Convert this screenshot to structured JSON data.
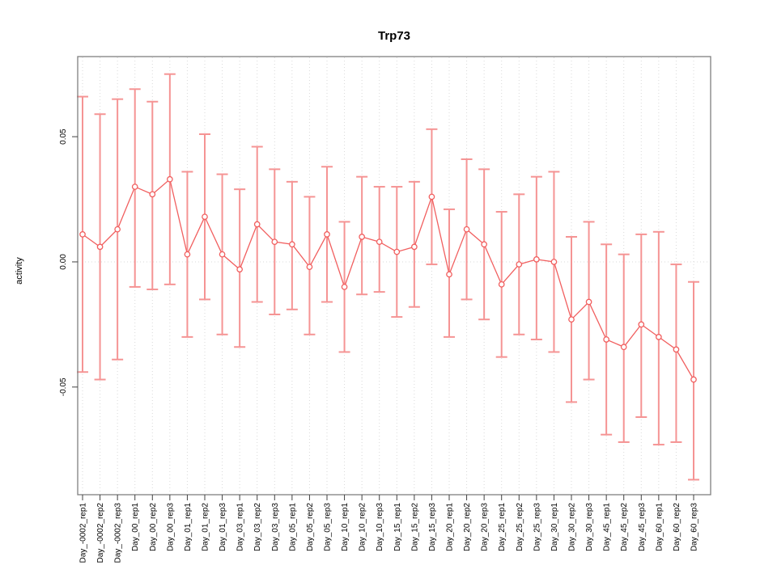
{
  "chart_data": {
    "type": "scatter",
    "title": "Trp73",
    "xlabel": "",
    "ylabel": "activity",
    "ylim": [
      -0.093,
      0.082
    ],
    "yticks": [
      0.05,
      0.0,
      -0.05
    ],
    "ytick_labels": [
      "0.05",
      "0.00",
      "-0.05"
    ],
    "grid": {
      "vertical_dotted_per_category": true,
      "horizontal_zero_line_dotted": true
    },
    "legend_position": "none",
    "marker": "open-circle",
    "connected_line": true,
    "error_bars": true,
    "categories": [
      "Day_-0002_rep1",
      "Day_-0002_rep2",
      "Day_-0002_rep3",
      "Day_00_rep1",
      "Day_00_rep2",
      "Day_00_rep3",
      "Day_01_rep1",
      "Day_01_rep2",
      "Day_01_rep3",
      "Day_03_rep1",
      "Day_03_rep2",
      "Day_03_rep3",
      "Day_05_rep1",
      "Day_05_rep2",
      "Day_05_rep3",
      "Day_10_rep1",
      "Day_10_rep2",
      "Day_10_rep3",
      "Day_15_rep1",
      "Day_15_rep2",
      "Day_15_rep3",
      "Day_20_rep1",
      "Day_20_rep2",
      "Day_20_rep3",
      "Day_25_rep1",
      "Day_25_rep2",
      "Day_25_rep3",
      "Day_30_rep1",
      "Day_30_rep2",
      "Day_30_rep3",
      "Day_45_rep1",
      "Day_45_rep2",
      "Day_45_rep3",
      "Day_60_rep1",
      "Day_60_rep2",
      "Day_60_rep3"
    ],
    "series": [
      {
        "name": "activity",
        "values": [
          0.011,
          0.006,
          0.013,
          0.03,
          0.027,
          0.033,
          0.003,
          0.018,
          0.003,
          -0.003,
          0.015,
          0.008,
          0.007,
          -0.002,
          0.011,
          -0.01,
          0.01,
          0.008,
          0.004,
          0.006,
          0.026,
          -0.005,
          0.013,
          0.007,
          -0.009,
          -0.001,
          0.001,
          0.0,
          -0.023,
          -0.016,
          -0.031,
          -0.034,
          -0.025,
          -0.03,
          -0.035,
          -0.047
        ],
        "err_lo": [
          -0.044,
          -0.047,
          -0.039,
          -0.01,
          -0.011,
          -0.009,
          -0.03,
          -0.015,
          -0.029,
          -0.034,
          -0.016,
          -0.021,
          -0.019,
          -0.029,
          -0.016,
          -0.036,
          -0.013,
          -0.012,
          -0.022,
          -0.018,
          -0.001,
          -0.03,
          -0.015,
          -0.023,
          -0.038,
          -0.029,
          -0.031,
          -0.036,
          -0.056,
          -0.047,
          -0.069,
          -0.072,
          -0.062,
          -0.073,
          -0.072,
          -0.087
        ],
        "err_hi": [
          0.066,
          0.059,
          0.065,
          0.069,
          0.064,
          0.075,
          0.036,
          0.051,
          0.035,
          0.029,
          0.046,
          0.037,
          0.032,
          0.026,
          0.038,
          0.016,
          0.034,
          0.03,
          0.03,
          0.032,
          0.053,
          0.021,
          0.041,
          0.037,
          0.02,
          0.027,
          0.034,
          0.036,
          0.01,
          0.016,
          0.007,
          0.003,
          0.011,
          0.012,
          -0.001,
          -0.008
        ]
      }
    ]
  },
  "colors": {
    "point_line": "#f15f5f",
    "error_bar": "#f59494",
    "grid": "#d9d9d9",
    "box": "#7f7f7f",
    "tick": "#404040",
    "text": "#000000"
  }
}
